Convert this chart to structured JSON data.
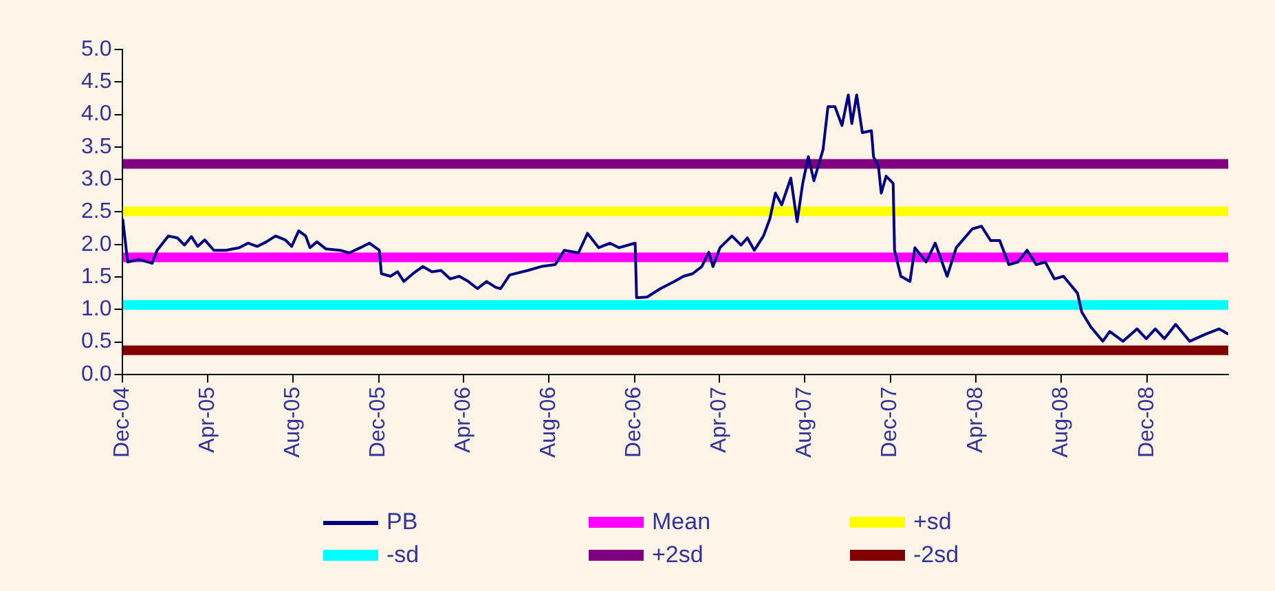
{
  "chart_data": {
    "type": "line",
    "xlim": [
      "2004-12-01",
      "2009-03-27"
    ],
    "xticks": [
      {
        "value": "2004-12-01",
        "label": "Dec-04"
      },
      {
        "value": "2005-04-01",
        "label": "Apr-05"
      },
      {
        "value": "2005-08-01",
        "label": "Aug-05"
      },
      {
        "value": "2005-12-01",
        "label": "Dec-05"
      },
      {
        "value": "2006-04-01",
        "label": "Apr-06"
      },
      {
        "value": "2006-08-01",
        "label": "Aug-06"
      },
      {
        "value": "2006-12-01",
        "label": "Dec-06"
      },
      {
        "value": "2007-04-01",
        "label": "Apr-07"
      },
      {
        "value": "2007-08-01",
        "label": "Aug-07"
      },
      {
        "value": "2007-12-01",
        "label": "Dec-07"
      },
      {
        "value": "2008-04-01",
        "label": "Apr-08"
      },
      {
        "value": "2008-08-01",
        "label": "Aug-08"
      },
      {
        "value": "2008-12-01",
        "label": "Dec-08"
      }
    ],
    "ylim": [
      0,
      5
    ],
    "yticks": [
      {
        "value": 0,
        "label": "0.0"
      },
      {
        "value": 0.5,
        "label": "0.5"
      },
      {
        "value": 1,
        "label": "1.0"
      },
      {
        "value": 1.5,
        "label": "1.5"
      },
      {
        "value": 2,
        "label": "2.0"
      },
      {
        "value": 2.5,
        "label": "2.5"
      },
      {
        "value": 3,
        "label": "3.0"
      },
      {
        "value": 3.5,
        "label": "3.5"
      },
      {
        "value": 4,
        "label": "4.0"
      },
      {
        "value": 4.5,
        "label": "4.5"
      },
      {
        "value": 5,
        "label": "5.0"
      }
    ],
    "legend": "bottom",
    "marker": "none",
    "line_style": "solid",
    "series": [
      {
        "name": "PB",
        "color": "#000080",
        "x": [
          "2004-12-01",
          "2004-12-08",
          "2004-12-24",
          "2005-01-12",
          "2005-01-19",
          "2005-02-04",
          "2005-02-17",
          "2005-02-27",
          "2005-03-09",
          "2005-03-18",
          "2005-03-28",
          "2005-04-10",
          "2005-04-27",
          "2005-05-16",
          "2005-05-29",
          "2005-06-11",
          "2005-06-24",
          "2005-07-07",
          "2005-07-21",
          "2005-07-30",
          "2005-08-09",
          "2005-08-19",
          "2005-08-25",
          "2005-09-04",
          "2005-09-17",
          "2005-10-07",
          "2005-10-20",
          "2005-11-05",
          "2005-11-18",
          "2005-12-02",
          "2005-12-05",
          "2005-12-18",
          "2005-12-28",
          "2006-01-06",
          "2006-01-19",
          "2006-02-02",
          "2006-02-15",
          "2006-02-28",
          "2006-03-13",
          "2006-03-26",
          "2006-04-08",
          "2006-04-21",
          "2006-05-04",
          "2006-05-17",
          "2006-05-24",
          "2006-06-06",
          "2006-07-02",
          "2006-07-21",
          "2006-08-10",
          "2006-08-23",
          "2006-09-12",
          "2006-09-25",
          "2006-10-11",
          "2006-10-27",
          "2006-11-09",
          "2006-12-02",
          "2006-12-04",
          "2006-12-19",
          "2007-01-07",
          "2007-01-27",
          "2007-02-09",
          "2007-02-22",
          "2007-03-07",
          "2007-03-17",
          "2007-03-23",
          "2007-04-02",
          "2007-04-19",
          "2007-05-02",
          "2007-05-11",
          "2007-05-21",
          "2007-06-03",
          "2007-06-12",
          "2007-06-20",
          "2007-06-29",
          "2007-07-12",
          "2007-07-21",
          "2007-07-29",
          "2007-08-06",
          "2007-08-14",
          "2007-08-27",
          "2007-09-03",
          "2007-09-13",
          "2007-09-23",
          "2007-10-02",
          "2007-10-07",
          "2007-10-14",
          "2007-10-22",
          "2007-11-04",
          "2007-11-07",
          "2007-11-14",
          "2007-11-18",
          "2007-11-25",
          "2007-12-05",
          "2007-12-07",
          "2007-12-16",
          "2007-12-29",
          "2008-01-05",
          "2008-01-21",
          "2008-02-03",
          "2008-02-20",
          "2008-03-04",
          "2008-03-27",
          "2008-04-09",
          "2008-04-22",
          "2008-05-05",
          "2008-05-18",
          "2008-05-31",
          "2008-06-13",
          "2008-06-26",
          "2008-07-09",
          "2008-07-22",
          "2008-08-04",
          "2008-08-24",
          "2008-08-30",
          "2008-09-12",
          "2008-09-29",
          "2008-10-09",
          "2008-10-28",
          "2008-11-17",
          "2008-11-30",
          "2008-12-13",
          "2008-12-26",
          "2009-01-11",
          "2009-01-31",
          "2009-02-23",
          "2009-03-14",
          "2009-03-27"
        ],
        "values": [
          2.39,
          1.73,
          1.77,
          1.71,
          1.91,
          2.13,
          2.1,
          1.99,
          2.12,
          1.97,
          2.07,
          1.91,
          1.91,
          1.95,
          2.02,
          1.97,
          2.04,
          2.13,
          2.07,
          1.97,
          2.21,
          2.13,
          1.95,
          2.04,
          1.93,
          1.91,
          1.87,
          1.95,
          2.02,
          1.91,
          1.55,
          1.51,
          1.58,
          1.43,
          1.55,
          1.66,
          1.58,
          1.6,
          1.47,
          1.51,
          1.43,
          1.32,
          1.43,
          1.34,
          1.32,
          1.53,
          1.6,
          1.66,
          1.69,
          1.91,
          1.87,
          2.17,
          1.95,
          2.02,
          1.95,
          2.02,
          1.18,
          1.19,
          1.32,
          1.43,
          1.51,
          1.55,
          1.66,
          1.88,
          1.66,
          1.95,
          2.13,
          1.99,
          2.1,
          1.91,
          2.13,
          2.39,
          2.79,
          2.61,
          3.02,
          2.35,
          2.94,
          3.35,
          2.98,
          3.46,
          4.12,
          4.12,
          3.83,
          4.3,
          3.86,
          4.3,
          3.72,
          3.75,
          3.35,
          3.2,
          2.79,
          3.05,
          2.94,
          1.91,
          1.51,
          1.43,
          1.95,
          1.73,
          2.02,
          1.51,
          1.95,
          2.24,
          2.28,
          2.06,
          2.06,
          1.69,
          1.73,
          1.91,
          1.69,
          1.73,
          1.47,
          1.51,
          1.25,
          0.96,
          0.73,
          0.51,
          0.66,
          0.51,
          0.7,
          0.55,
          0.7,
          0.55,
          0.77,
          0.51,
          0.62,
          0.7,
          0.62
        ]
      },
      {
        "name": "Mean",
        "color": "#ff00ff",
        "x": [
          "2004-12-01",
          "2009-03-27"
        ],
        "values": [
          1.8,
          1.8
        ]
      },
      {
        "name": "+sd",
        "color": "#ffff00",
        "x": [
          "2004-12-01",
          "2009-03-27"
        ],
        "values": [
          2.51,
          2.51
        ]
      },
      {
        "name": "-sd",
        "color": "#00ffff",
        "x": [
          "2004-12-01",
          "2009-03-27"
        ],
        "values": [
          1.07,
          1.07
        ]
      },
      {
        "name": "+2sd",
        "color": "#800080",
        "x": [
          "2004-12-01",
          "2009-03-27"
        ],
        "values": [
          3.24,
          3.24
        ]
      },
      {
        "name": "-2sd",
        "color": "#800000",
        "x": [
          "2004-12-01",
          "2009-03-27"
        ],
        "values": [
          0.37,
          0.37
        ]
      }
    ]
  }
}
